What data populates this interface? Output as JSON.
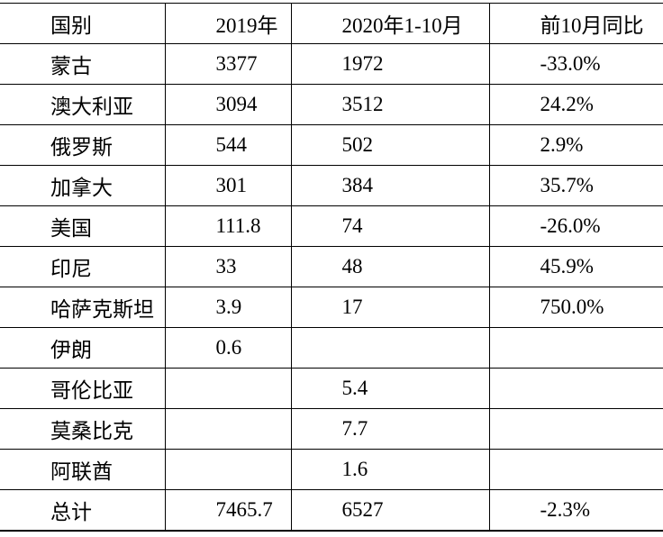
{
  "table": {
    "header": {
      "country": "国别",
      "y2019": "2019年",
      "y2020": "2020年1-10月",
      "yoy": "前10月同比"
    },
    "rows": [
      {
        "country": "蒙古",
        "v2019": "3377",
        "v2020": "1972",
        "yoy": "-33.0%"
      },
      {
        "country": "澳大利亚",
        "v2019": "3094",
        "v2020": "3512",
        "yoy": "24.2%"
      },
      {
        "country": "俄罗斯",
        "v2019": "544",
        "v2020": "502",
        "yoy": "2.9%"
      },
      {
        "country": "加拿大",
        "v2019": "301",
        "v2020": "384",
        "yoy": "35.7%"
      },
      {
        "country": "美国",
        "v2019": "111.8",
        "v2020": "74",
        "yoy": "-26.0%"
      },
      {
        "country": "印尼",
        "v2019": "33",
        "v2020": "48",
        "yoy": "45.9%"
      },
      {
        "country": "哈萨克斯坦",
        "v2019": "3.9",
        "v2020": "17",
        "yoy": "750.0%"
      },
      {
        "country": "伊朗",
        "v2019": "0.6",
        "v2020": "",
        "yoy": ""
      },
      {
        "country": "哥伦比亚",
        "v2019": "",
        "v2020": "5.4",
        "yoy": ""
      },
      {
        "country": "莫桑比克",
        "v2019": "",
        "v2020": "7.7",
        "yoy": ""
      },
      {
        "country": "阿联酋",
        "v2019": "",
        "v2020": "1.6",
        "yoy": ""
      },
      {
        "country": "总计",
        "v2019": "7465.7",
        "v2020": "6527",
        "yoy": "-2.3%"
      }
    ],
    "colors": {
      "border": "#000000",
      "text": "#000000",
      "background": "#ffffff"
    }
  }
}
